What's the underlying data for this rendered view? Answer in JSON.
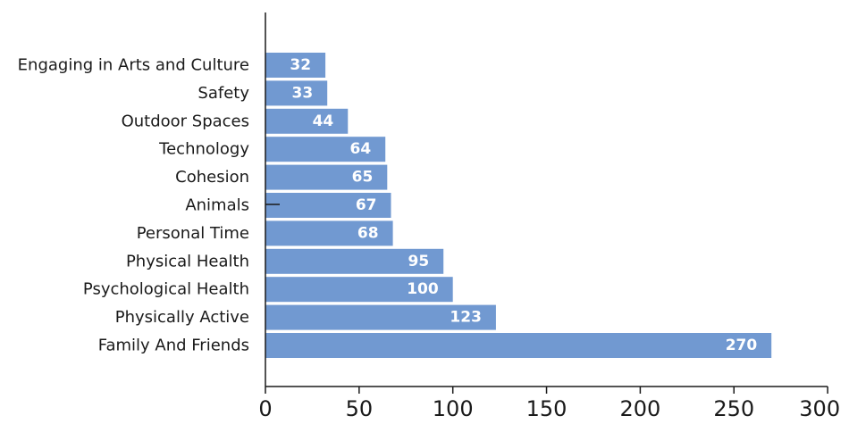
{
  "chart_data": {
    "type": "bar",
    "orientation": "horizontal",
    "title": "",
    "xlabel": "",
    "ylabel": "",
    "categories": [
      "Engaging in Arts and Culture",
      "Safety",
      "Outdoor Spaces",
      "Technology",
      "Cohesion",
      "Animals",
      "Personal Time",
      "Physical Health",
      "Psychological Health",
      "Physically Active",
      "Family And Friends"
    ],
    "values": [
      32,
      33,
      44,
      64,
      65,
      67,
      68,
      95,
      100,
      123,
      270
    ],
    "xlim": [
      0,
      300
    ],
    "xticks": [
      0,
      50,
      100,
      150,
      200,
      250,
      300
    ],
    "xtick_labels": [
      "0",
      "50",
      "100",
      "150",
      "200",
      "250",
      "300"
    ],
    "bar_color": "#7199d1",
    "grid": false,
    "legend": "none"
  }
}
